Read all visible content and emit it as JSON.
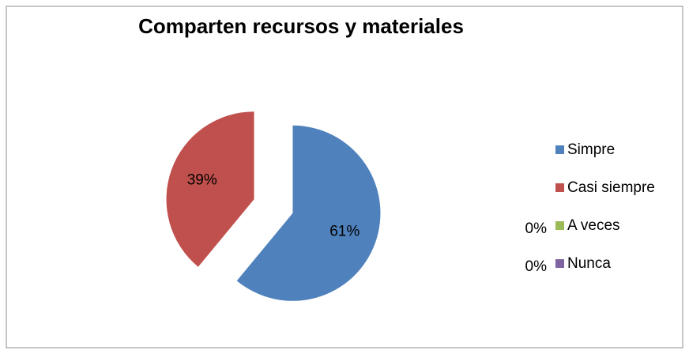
{
  "chart_data": {
    "type": "pie",
    "title": "Comparten recursos y materiales",
    "categories": [
      "Simpre",
      "Casi siempre",
      "A veces",
      "Nunca"
    ],
    "values": [
      61,
      39,
      0,
      0
    ],
    "value_labels": [
      "61%",
      "39%",
      "0%",
      "0%"
    ],
    "colors": [
      "#4f81bd",
      "#c0504d",
      "#9bbb59",
      "#8064a2"
    ],
    "legend": "right"
  }
}
